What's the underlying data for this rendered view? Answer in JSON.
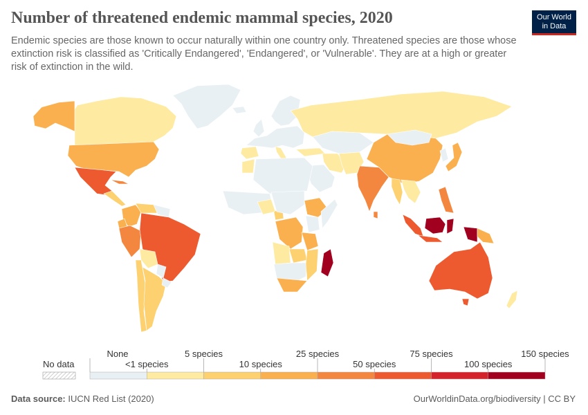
{
  "title": "Number of threatened endemic mammal species, 2020",
  "subtitle": "Endemic species are those known to occur naturally within one country only. Threatened species are those whose extinction risk is classified as 'Critically Endangered', 'Endangered', or 'Vulnerable'. They are at a high or greater risk of extinction in the wild.",
  "logo": {
    "line1": "Our World",
    "line2": "in Data"
  },
  "legend": {
    "no_data_label": "No data",
    "upper_labels": [
      "None",
      "5 species",
      "25 species",
      "75 species",
      "150 species"
    ],
    "lower_labels": [
      "<1 species",
      "10 species",
      "50 species",
      "100 species"
    ],
    "bins": [
      {
        "from": 0,
        "to": 1,
        "color": "#e8f0f4"
      },
      {
        "from": 1,
        "to": 5,
        "color": "#feeaa0"
      },
      {
        "from": 5,
        "to": 10,
        "color": "#fdd070"
      },
      {
        "from": 10,
        "to": 25,
        "color": "#fbb04f"
      },
      {
        "from": 25,
        "to": 50,
        "color": "#f4873f"
      },
      {
        "from": 50,
        "to": 75,
        "color": "#ee5a30"
      },
      {
        "from": 75,
        "to": 100,
        "color": "#d4232a"
      },
      {
        "from": 100,
        "to": 150,
        "color": "#a1001e"
      }
    ]
  },
  "regions": [
    {
      "name": "Canada",
      "color": "#feeaa0"
    },
    {
      "name": "Alaska (USA)",
      "color": "#fbb04f"
    },
    {
      "name": "Greenland",
      "color": "#e8f0f4"
    },
    {
      "name": "United States",
      "color": "#fbb04f"
    },
    {
      "name": "Mexico",
      "color": "#ee5a30"
    },
    {
      "name": "Central America",
      "color": "#fdd070"
    },
    {
      "name": "Cuba",
      "color": "#f4873f"
    },
    {
      "name": "Colombia",
      "color": "#fbb04f"
    },
    {
      "name": "Venezuela",
      "color": "#fdd070"
    },
    {
      "name": "Guianas",
      "color": "#e8f0f4"
    },
    {
      "name": "Ecuador",
      "color": "#fbb04f"
    },
    {
      "name": "Peru",
      "color": "#f4873f"
    },
    {
      "name": "Brazil",
      "color": "#ee5a30"
    },
    {
      "name": "Bolivia",
      "color": "#feeaa0"
    },
    {
      "name": "Paraguay",
      "color": "#e8f0f4"
    },
    {
      "name": "Chile",
      "color": "#fdd070"
    },
    {
      "name": "Argentina",
      "color": "#fdd070"
    },
    {
      "name": "Uruguay",
      "color": "#e8f0f4"
    },
    {
      "name": "Iceland",
      "color": "#e8f0f4"
    },
    {
      "name": "United Kingdom",
      "color": "#e8f0f4"
    },
    {
      "name": "Scandinavia",
      "color": "#e8f0f4"
    },
    {
      "name": "Europe",
      "color": "#e8f0f4"
    },
    {
      "name": "Spain",
      "color": "#feeaa0"
    },
    {
      "name": "Italy",
      "color": "#feeaa0"
    },
    {
      "name": "Turkey",
      "color": "#feeaa0"
    },
    {
      "name": "Russia",
      "color": "#feeaa0"
    },
    {
      "name": "Central Asia",
      "color": "#e8f0f4"
    },
    {
      "name": "Iran",
      "color": "#feeaa0"
    },
    {
      "name": "Arabian Peninsula",
      "color": "#e8f0f4"
    },
    {
      "name": "Pakistan & Afghanistan",
      "color": "#feeaa0"
    },
    {
      "name": "India",
      "color": "#f4873f"
    },
    {
      "name": "Sri Lanka",
      "color": "#f4873f"
    },
    {
      "name": "China",
      "color": "#fbb04f"
    },
    {
      "name": "Mongolia",
      "color": "#e8f0f4"
    },
    {
      "name": "Japan",
      "color": "#fbb04f"
    },
    {
      "name": "Korea",
      "color": "#e8f0f4"
    },
    {
      "name": "Myanmar",
      "color": "#fdd070"
    },
    {
      "name": "Indochina",
      "color": "#feeaa0"
    },
    {
      "name": "Philippines",
      "color": "#f4873f"
    },
    {
      "name": "Sumatra",
      "color": "#ee5a30"
    },
    {
      "name": "Java",
      "color": "#ee5a30"
    },
    {
      "name": "Borneo",
      "color": "#a1001e"
    },
    {
      "name": "Sulawesi",
      "color": "#a1001e"
    },
    {
      "name": "New Guinea",
      "color": "#a1001e"
    },
    {
      "name": "Papua New Guinea",
      "color": "#fbb04f"
    },
    {
      "name": "Australia",
      "color": "#ee5a30"
    },
    {
      "name": "Tasmania",
      "color": "#ee5a30"
    },
    {
      "name": "New Zealand",
      "color": "#feeaa0"
    },
    {
      "name": "North Africa",
      "color": "#e8f0f4"
    },
    {
      "name": "Morocco",
      "color": "#feeaa0"
    },
    {
      "name": "West Africa",
      "color": "#e8f0f4"
    },
    {
      "name": "Nigeria",
      "color": "#feeaa0"
    },
    {
      "name": "Cameroon",
      "color": "#fdd070"
    },
    {
      "name": "Ethiopia",
      "color": "#fbb04f"
    },
    {
      "name": "Somalia",
      "color": "#e8f0f4"
    },
    {
      "name": "Central Africa",
      "color": "#e8f0f4"
    },
    {
      "name": "DR Congo",
      "color": "#fbb04f"
    },
    {
      "name": "Kenya",
      "color": "#e8f0f4"
    },
    {
      "name": "Tanzania",
      "color": "#fbb04f"
    },
    {
      "name": "Angola",
      "color": "#feeaa0"
    },
    {
      "name": "Zambia",
      "color": "#fdd070"
    },
    {
      "name": "Southern Africa",
      "color": "#e8f0f4"
    },
    {
      "name": "Mozambique",
      "color": "#fdd070"
    },
    {
      "name": "South Africa",
      "color": "#fbb04f"
    },
    {
      "name": "Madagascar",
      "color": "#a1001e"
    }
  ],
  "footer": {
    "source_label": "Data source:",
    "source": "IUCN Red List (2020)",
    "right": "OurWorldinData.org/biodiversity | CC BY"
  }
}
